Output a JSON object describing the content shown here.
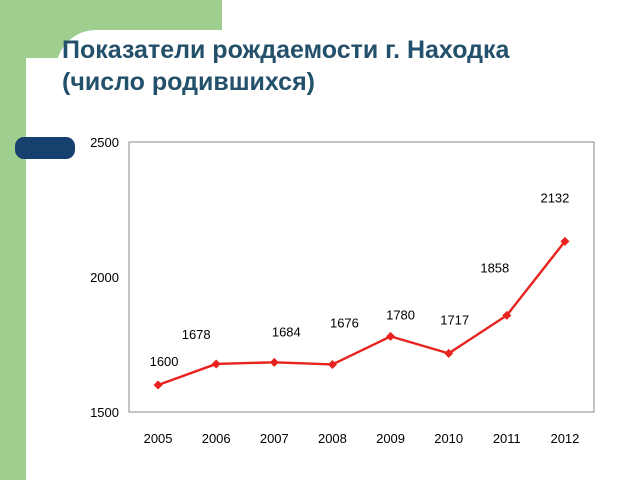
{
  "title": {
    "line1": "Показатели рождаемости г. Находка",
    "line2": "(число родившихся)"
  },
  "colors": {
    "accent_green": "#9fcf8f",
    "title_text": "#23506a",
    "dark_pill": "#16406e",
    "series_red": "#e8231f"
  },
  "chart_data": {
    "type": "line",
    "title": "Показатели рождаемости г. Находка (число родившихся)",
    "xlabel": "",
    "ylabel": "",
    "categories": [
      "2005",
      "2006",
      "2007",
      "2008",
      "2009",
      "2010",
      "2011",
      "2012"
    ],
    "series": [
      {
        "values": [
          1600,
          1678,
          1684,
          1676,
          1780,
          1717,
          1858,
          2132
        ],
        "labels": [
          "1600",
          "1678",
          "1684",
          "1676",
          "1780",
          "1717",
          "1858",
          "2132"
        ],
        "color": "#e8231f",
        "marker": "diamond"
      }
    ],
    "ylim": [
      1500,
      2500
    ],
    "yticks": [
      "1500",
      "2000",
      "2500"
    ],
    "grid": false,
    "legend": "none"
  }
}
